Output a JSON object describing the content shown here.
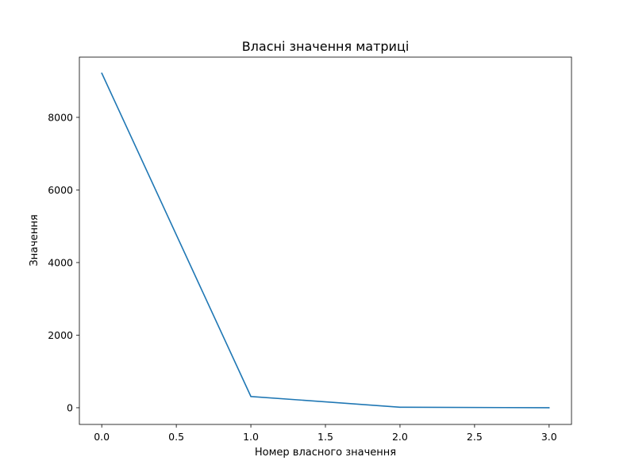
{
  "chart_data": {
    "type": "line",
    "title": "Власні значення матриці",
    "xlabel": "Номер власного значення",
    "ylabel": "Значення",
    "xlim": [
      -0.15,
      3.15
    ],
    "ylim": [
      -460,
      9660
    ],
    "x_ticks": [
      0.0,
      0.5,
      1.0,
      1.5,
      2.0,
      2.5,
      3.0
    ],
    "x_tick_labels": [
      "0.0",
      "0.5",
      "1.0",
      "1.5",
      "2.0",
      "2.5",
      "3.0"
    ],
    "y_ticks": [
      0,
      2000,
      4000,
      6000,
      8000
    ],
    "y_tick_labels": [
      "0",
      "2000",
      "4000",
      "6000",
      "8000"
    ],
    "grid": false,
    "series": [
      {
        "color": "#1f77b4",
        "x": [
          0,
          1,
          2,
          3
        ],
        "y": [
          9220,
          310,
          15,
          0
        ]
      }
    ]
  }
}
